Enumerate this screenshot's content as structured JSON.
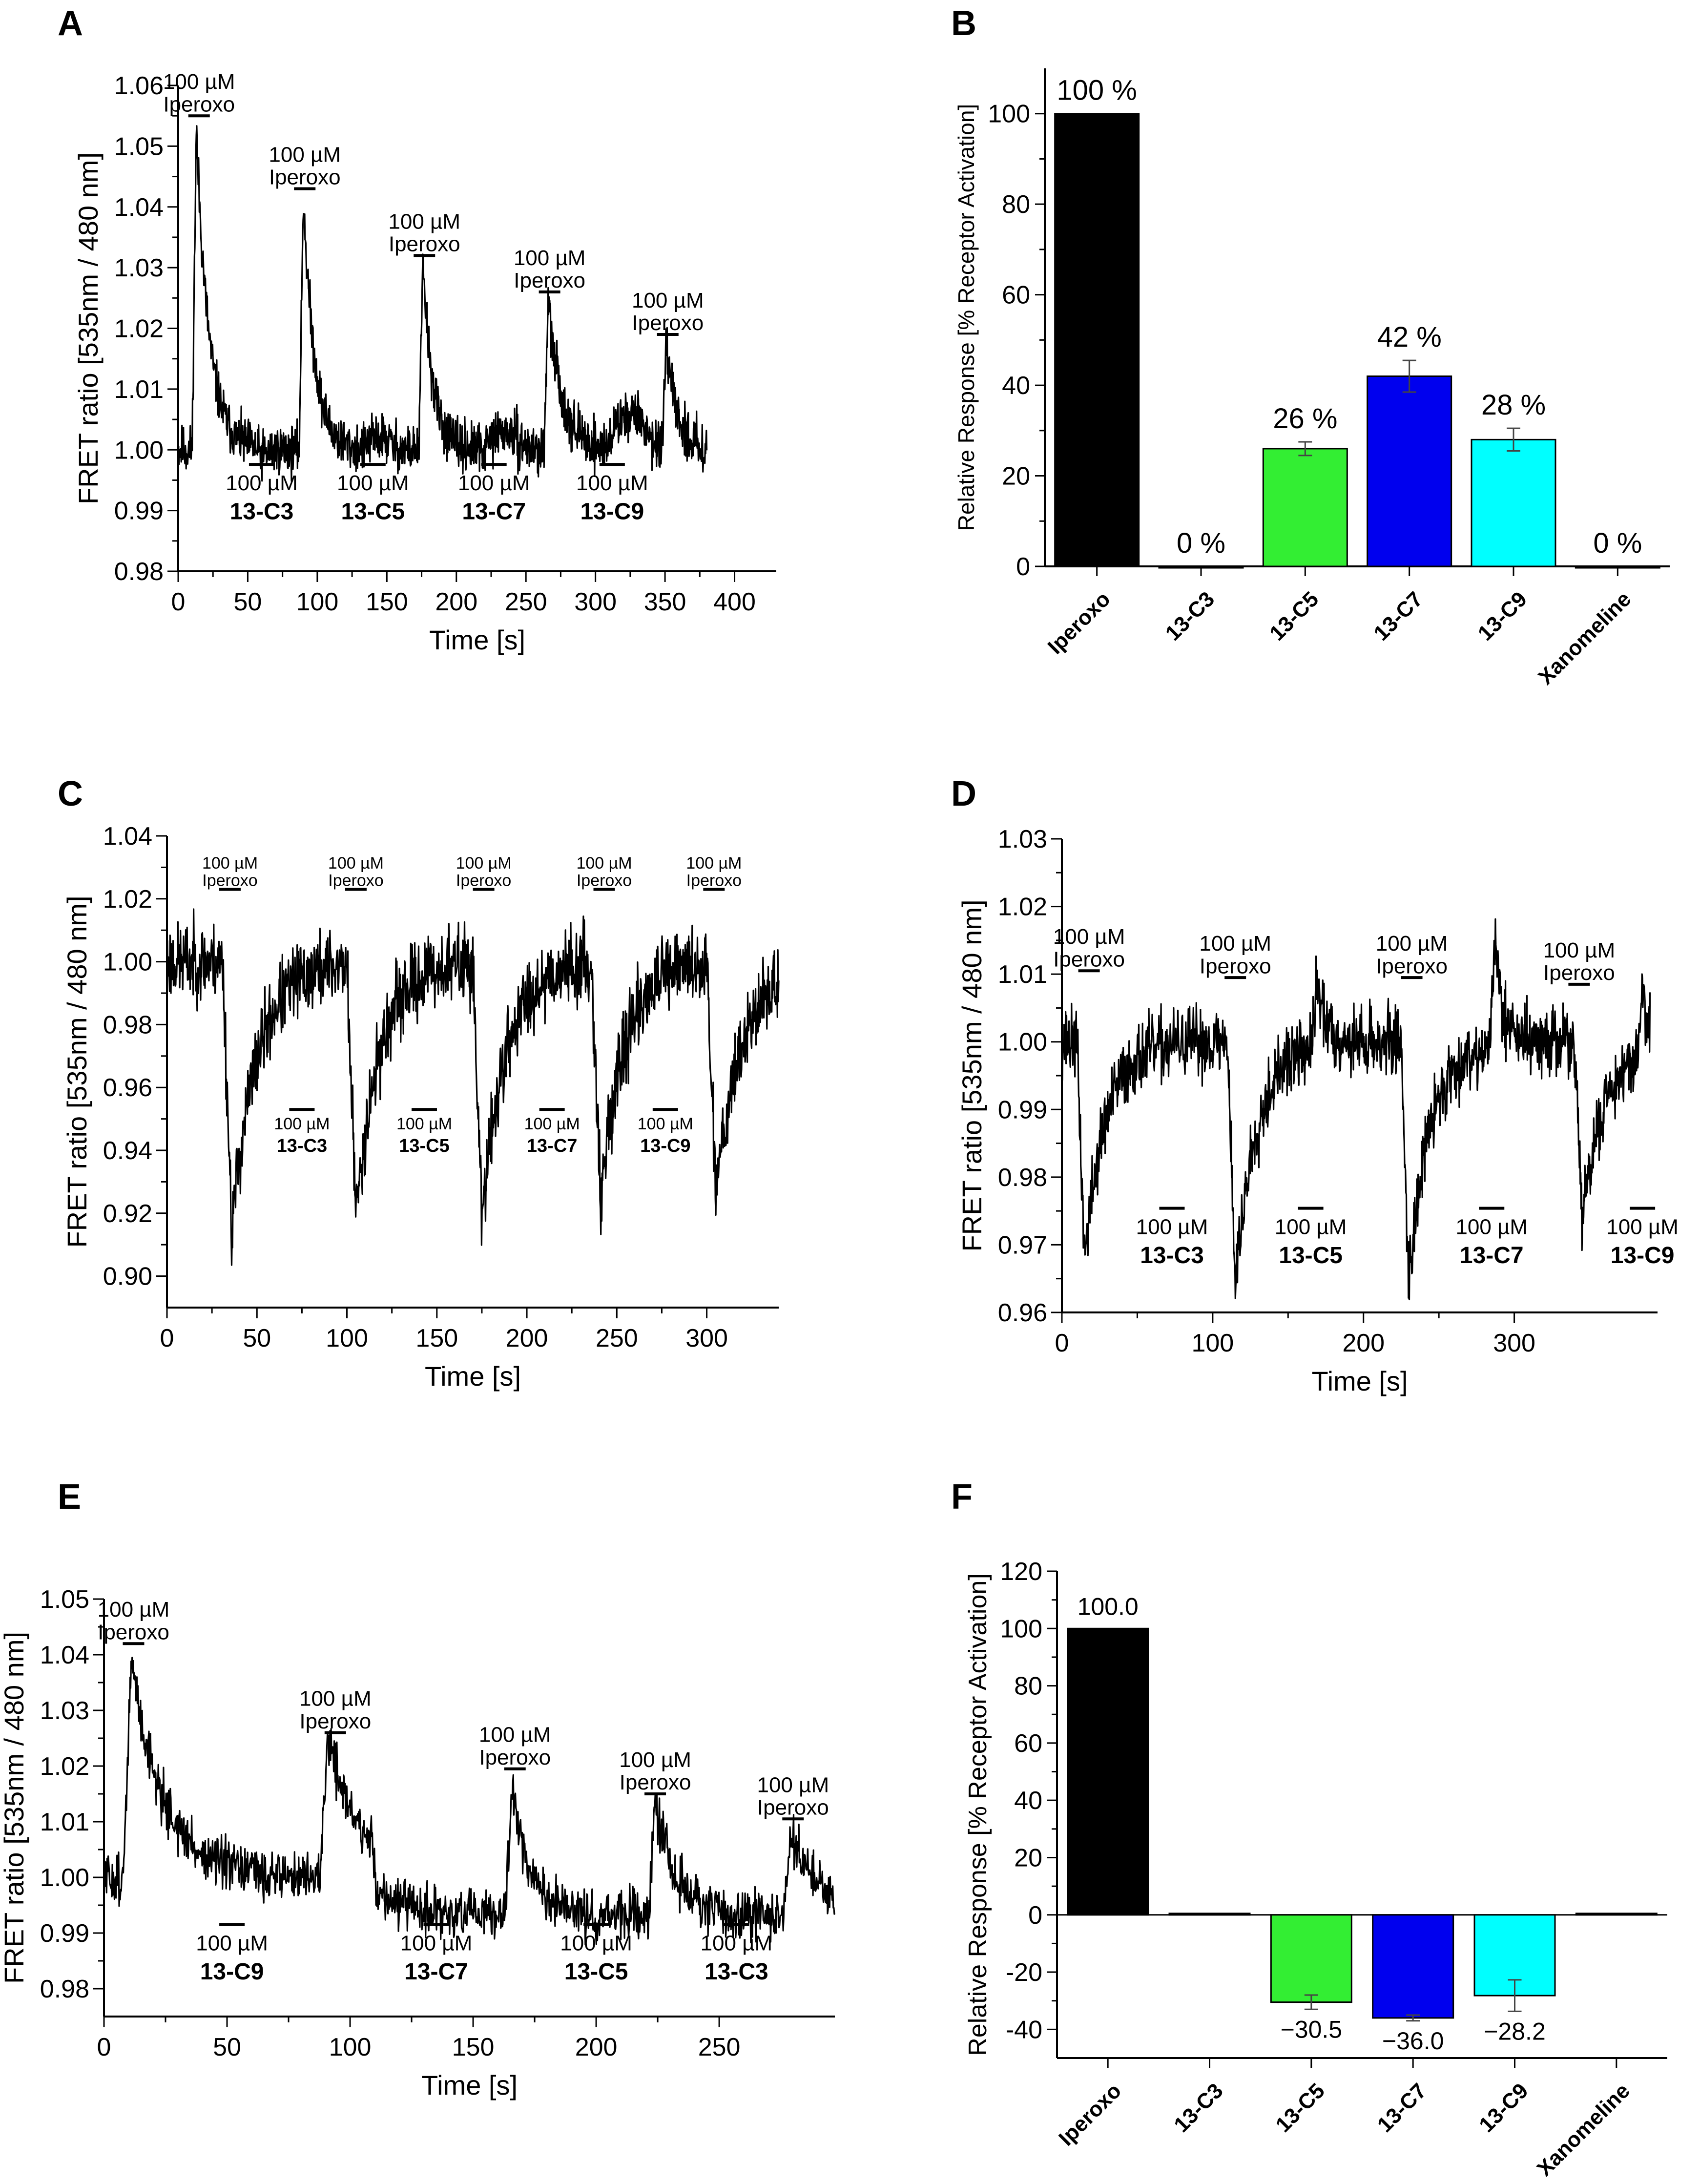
{
  "panels": {
    "A": {
      "letter": "A",
      "chart_data": {
        "type": "line",
        "title": "",
        "xlabel": "Time [s]",
        "ylabel": "FRET ratio [535nm / 480 nm]",
        "xlim": [
          0,
          430
        ],
        "ylim": [
          0.98,
          1.06
        ],
        "xticks": [
          "0",
          "50",
          "100",
          "150",
          "200",
          "250",
          "300",
          "350",
          "400"
        ],
        "yticks": [
          "0.98",
          "0.99",
          "1.00",
          "1.01",
          "1.02",
          "1.03",
          "1.04",
          "1.05",
          "1.06"
        ],
        "baseline": 1.0,
        "noise": 0.004,
        "x_end": 380,
        "events": [
          {
            "t": 10,
            "kind": "pos",
            "amp": 0.053,
            "tau": 9
          },
          {
            "t": 55,
            "kind": "sub",
            "amp": -0.001,
            "tau": 6
          },
          {
            "t": 87,
            "kind": "pos",
            "amp": 0.042,
            "tau": 8
          },
          {
            "t": 135,
            "kind": "sub",
            "amp": 0.002,
            "tau": 10
          },
          {
            "t": 173,
            "kind": "pos",
            "amp": 0.031,
            "tau": 7
          },
          {
            "t": 222,
            "kind": "sub",
            "amp": 0.003,
            "tau": 12
          },
          {
            "t": 263,
            "kind": "pos",
            "amp": 0.024,
            "tau": 10
          },
          {
            "t": 310,
            "kind": "sub",
            "amp": 0.006,
            "tau": 15
          },
          {
            "t": 348,
            "kind": "pos",
            "amp": 0.016,
            "tau": 8
          }
        ],
        "iperoxo_markers": [
          {
            "t": 15,
            "y": 1.055,
            "label1": "100 µM",
            "label2": "Iperoxo"
          },
          {
            "t": 91,
            "y": 1.043,
            "label1": "100 µM",
            "label2": "Iperoxo"
          },
          {
            "t": 177,
            "y": 1.032,
            "label1": "100 µM",
            "label2": "Iperoxo"
          },
          {
            "t": 267,
            "y": 1.026,
            "label1": "100 µM",
            "label2": "Iperoxo"
          },
          {
            "t": 352,
            "y": 1.019,
            "label1": "100 µM",
            "label2": "Iperoxo"
          }
        ],
        "compound_markers": [
          {
            "t": 60,
            "label1": "100 µM",
            "label2": "13-C3"
          },
          {
            "t": 140,
            "label1": "100 µM",
            "label2": "13-C5"
          },
          {
            "t": 227,
            "label1": "100 µM",
            "label2": "13-C7"
          },
          {
            "t": 312,
            "label1": "100 µM",
            "label2": "13-C9"
          }
        ]
      }
    },
    "B": {
      "letter": "B",
      "chart_data": {
        "type": "bar",
        "title": "",
        "xlabel": "",
        "ylabel": "Relative Response [% Receptor Activation]",
        "ylim": [
          0,
          110
        ],
        "yticks": [
          0,
          20,
          40,
          60,
          80,
          100
        ],
        "categories": [
          "Iperoxo",
          "13-C3",
          "13-C5",
          "13-C7",
          "13-C9",
          "Xanomeline"
        ],
        "values": [
          100,
          0,
          26,
          42,
          28,
          0
        ],
        "errors": [
          0,
          0,
          1.5,
          3.5,
          2.5,
          0
        ],
        "labels": [
          "100 %",
          "0 %",
          "26 %",
          "42 %",
          "28 %",
          "0 %"
        ],
        "colors": [
          "#000000",
          "#cc0000",
          "#33ee33",
          "#0000ee",
          "#00ffff",
          "#cc33cc"
        ]
      }
    },
    "C": {
      "letter": "C",
      "chart_data": {
        "type": "line",
        "title": "",
        "xlabel": "Time [s]",
        "ylabel": "FRET ratio [535nm / 480 nm]",
        "xlim": [
          0,
          340
        ],
        "ylim": [
          0.89,
          1.04
        ],
        "xticks": [
          "0",
          "50",
          "100",
          "150",
          "200",
          "250",
          "300"
        ],
        "yticks": [
          "0.90",
          "0.92",
          "0.94",
          "0.96",
          "0.98",
          "1.00",
          "1.02",
          "1.04"
        ],
        "baseline": 1.0,
        "noise": 0.012,
        "x_end": 340,
        "events": [
          {
            "t": 31,
            "kind": "neg",
            "amp": -0.085,
            "tau": 14
          },
          {
            "t": 100,
            "kind": "neg",
            "amp": -0.08,
            "tau": 13
          },
          {
            "t": 170,
            "kind": "neg",
            "amp": -0.082,
            "tau": 13
          },
          {
            "t": 236,
            "kind": "neg",
            "amp": -0.075,
            "tau": 13
          },
          {
            "t": 300,
            "kind": "neg",
            "amp": -0.07,
            "tau": 15
          }
        ],
        "iperoxo_markers": [
          {
            "t": 35,
            "y": 1.023,
            "label1": "100 µM",
            "label2": "Iperoxo"
          },
          {
            "t": 105,
            "y": 1.023,
            "label1": "100 µM",
            "label2": "Iperoxo"
          },
          {
            "t": 176,
            "y": 1.023,
            "label1": "100 µM",
            "label2": "Iperoxo"
          },
          {
            "t": 243,
            "y": 1.023,
            "label1": "100 µM",
            "label2": "Iperoxo"
          },
          {
            "t": 304,
            "y": 1.023,
            "label1": "100 µM",
            "label2": "Iperoxo"
          }
        ],
        "compound_markers": [
          {
            "t": 75,
            "label1": "100 µM",
            "label2": "13-C3"
          },
          {
            "t": 143,
            "label1": "100 µM",
            "label2": "13-C5"
          },
          {
            "t": 214,
            "label1": "100 µM",
            "label2": "13-C7"
          },
          {
            "t": 277,
            "label1": "100 µM",
            "label2": "13-C9"
          }
        ]
      }
    },
    "D": {
      "letter": "D",
      "chart_data": {
        "type": "line",
        "title": "",
        "xlabel": "Time [s]",
        "ylabel": "FRET ratio [535nm / 480 nm]",
        "xlim": [
          0,
          395
        ],
        "ylim": [
          0.96,
          1.03
        ],
        "xticks": [
          "0",
          "100",
          "200",
          "300"
        ],
        "yticks": [
          "0.96",
          "0.97",
          "0.98",
          "0.99",
          "1.00",
          "1.01",
          "1.02",
          "1.03"
        ],
        "baseline": 1.0,
        "noise": 0.005,
        "x_end": 390,
        "events": [
          {
            "t": 10,
            "kind": "neg",
            "amp": -0.032,
            "tau": 14
          },
          {
            "t": 110,
            "kind": "neg",
            "amp": -0.036,
            "tau": 14
          },
          {
            "t": 166,
            "kind": "pos",
            "amp": 0.01,
            "tau": 6
          },
          {
            "t": 225,
            "kind": "neg",
            "amp": -0.035,
            "tau": 14
          },
          {
            "t": 284,
            "kind": "pos",
            "amp": 0.015,
            "tau": 6
          },
          {
            "t": 340,
            "kind": "neg",
            "amp": -0.027,
            "tau": 14
          },
          {
            "t": 382,
            "kind": "pos",
            "amp": 0.01,
            "tau": 3
          }
        ],
        "iperoxo_markers": [
          {
            "t": 18,
            "y": 1.0105,
            "label1": "100 µM",
            "label2": "Iperoxo"
          },
          {
            "t": 115,
            "y": 1.0095,
            "label1": "100 µM",
            "label2": "Iperoxo"
          },
          {
            "t": 232,
            "y": 1.0095,
            "label1": "100 µM",
            "label2": "Iperoxo"
          },
          {
            "t": 343,
            "y": 1.0085,
            "label1": "100 µM",
            "label2": "Iperoxo"
          }
        ],
        "compound_markers": [
          {
            "t": 73,
            "label1": "100 µM",
            "label2": "13-C3"
          },
          {
            "t": 165,
            "label1": "100 µM",
            "label2": "13-C5"
          },
          {
            "t": 285,
            "label1": "100 µM",
            "label2": "13-C7"
          },
          {
            "t": 385,
            "label1": "100 µM",
            "label2": "13-C9"
          }
        ]
      }
    },
    "E": {
      "letter": "E",
      "chart_data": {
        "type": "line",
        "title": "",
        "xlabel": "Time [s]",
        "ylabel": "FRET ratio [535nm / 480 nm]",
        "xlim": [
          0,
          297
        ],
        "ylim": [
          0.975,
          1.05
        ],
        "xticks": [
          "0",
          "50",
          "100",
          "150",
          "200",
          "250"
        ],
        "yticks": [
          "0.98",
          "0.99",
          "1.00",
          "1.01",
          "1.02",
          "1.03",
          "1.04",
          "1.05"
        ],
        "baseline": 1.0,
        "noise": 0.0045,
        "x_end": 297,
        "events": [
          {
            "t": 8,
            "kind": "pos",
            "amp": 0.039,
            "tau": 13
          },
          {
            "t": 88,
            "kind": "pos",
            "amp": 0.026,
            "tau": 12
          },
          {
            "t": 110,
            "kind": "step",
            "amp": -0.007,
            "tau": 1
          },
          {
            "t": 163,
            "kind": "pos",
            "amp": 0.024,
            "tau": 7
          },
          {
            "t": 221,
            "kind": "pos",
            "amp": 0.021,
            "tau": 8
          },
          {
            "t": 276,
            "kind": "pos",
            "amp": 0.016,
            "tau": 10
          }
        ],
        "iperoxo_markers": [
          {
            "t": 12,
            "y": 1.042,
            "label1": "100 µM",
            "label2": "Iperoxo"
          },
          {
            "t": 94,
            "y": 1.026,
            "label1": "100 µM",
            "label2": "Iperoxo"
          },
          {
            "t": 167,
            "y": 1.0195,
            "label1": "100 µM",
            "label2": "Iperoxo"
          },
          {
            "t": 224,
            "y": 1.015,
            "label1": "100 µM",
            "label2": "Iperoxo"
          },
          {
            "t": 280,
            "y": 1.0105,
            "label1": "100 µM",
            "label2": "Iperoxo"
          }
        ],
        "compound_markers": [
          {
            "t": 52,
            "label1": "100 µM",
            "label2": "13-C9"
          },
          {
            "t": 135,
            "label1": "100 µM",
            "label2": "13-C7"
          },
          {
            "t": 200,
            "label1": "100 µM",
            "label2": "13-C5"
          },
          {
            "t": 257,
            "label1": "100 µM",
            "label2": "13-C3"
          }
        ]
      }
    },
    "F": {
      "letter": "F",
      "chart_data": {
        "type": "bar",
        "title": "",
        "xlabel": "",
        "ylabel": "Relative Response [% Receptor Activation]",
        "ylim": [
          -50,
          120
        ],
        "yticks": [
          -40,
          -20,
          0,
          20,
          40,
          60,
          80,
          100,
          120
        ],
        "categories": [
          "Iperoxo",
          "13-C3",
          "13-C5",
          "13-C7",
          "13-C9",
          "Xanomeline"
        ],
        "values": [
          100.0,
          0.5,
          -30.5,
          -36.0,
          -28.2,
          0.5
        ],
        "errors": [
          0,
          0,
          2.5,
          1.0,
          5.5,
          0
        ],
        "labels": [
          "100.0",
          "",
          "−30.5",
          "−36.0",
          "−28.2",
          ""
        ],
        "colors": [
          "#000000",
          "#cc0000",
          "#33ee33",
          "#0000ee",
          "#00ffff",
          "#cc33cc"
        ]
      }
    }
  }
}
